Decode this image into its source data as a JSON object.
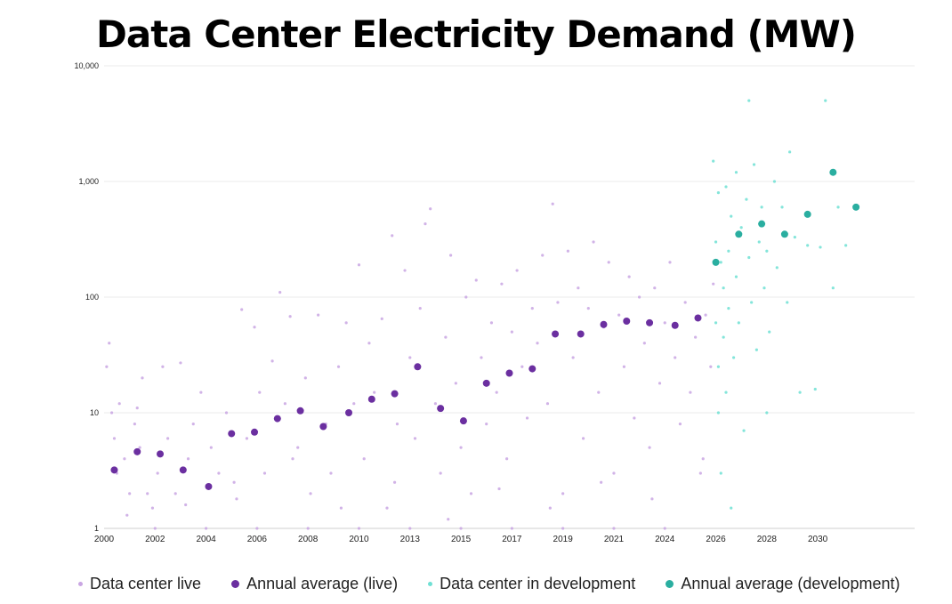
{
  "chart_data": {
    "type": "scatter",
    "title": "Data Center Electricity Demand (MW)",
    "y_scale": "log",
    "ylim": [
      1,
      10000
    ],
    "y_ticks": [
      {
        "value": 1,
        "label": "1"
      },
      {
        "value": 10,
        "label": "10"
      },
      {
        "value": 100,
        "label": "100"
      },
      {
        "value": 1000,
        "label": "1,000"
      },
      {
        "value": 10000,
        "label": "10,000"
      }
    ],
    "xlim": [
      2000,
      2031.8
    ],
    "x_ticks": [
      {
        "value": 2000,
        "label": "2000"
      },
      {
        "value": 2002,
        "label": "2002"
      },
      {
        "value": 2004,
        "label": "2004"
      },
      {
        "value": 2006,
        "label": "2006"
      },
      {
        "value": 2008,
        "label": "2008"
      },
      {
        "value": 2010,
        "label": "2010"
      },
      {
        "value": 2012,
        "label": "2013"
      },
      {
        "value": 2014,
        "label": "2015"
      },
      {
        "value": 2016,
        "label": "2017"
      },
      {
        "value": 2018,
        "label": "2019"
      },
      {
        "value": 2020,
        "label": "2021"
      },
      {
        "value": 2022,
        "label": "2024"
      },
      {
        "value": 2024,
        "label": "2026"
      },
      {
        "value": 2026,
        "label": "2028"
      },
      {
        "value": 2028,
        "label": "2030"
      }
    ],
    "grid": true,
    "legend_position": "bottom",
    "series": [
      {
        "name": "Data center live",
        "color": "#c9a6e3",
        "points": [
          [
            2000.1,
            25
          ],
          [
            2000.2,
            40
          ],
          [
            2000.3,
            10
          ],
          [
            2000.4,
            6
          ],
          [
            2000.5,
            3
          ],
          [
            2000.6,
            12
          ],
          [
            2000.8,
            4
          ],
          [
            2000.9,
            1.3
          ],
          [
            2001.0,
            2
          ],
          [
            2001.2,
            8
          ],
          [
            2001.4,
            5
          ],
          [
            2001.5,
            20
          ],
          [
            2001.7,
            2
          ],
          [
            2001.9,
            1.5
          ],
          [
            2002.1,
            3
          ],
          [
            2002.3,
            25
          ],
          [
            2002.5,
            6
          ],
          [
            2002.8,
            2
          ],
          [
            2003.0,
            27
          ],
          [
            2003.2,
            1.6
          ],
          [
            2003.5,
            8
          ],
          [
            2003.8,
            15
          ],
          [
            2004.2,
            5
          ],
          [
            2004.5,
            3
          ],
          [
            2004.8,
            10
          ],
          [
            2005.1,
            2.5
          ],
          [
            2005.4,
            78
          ],
          [
            2005.6,
            6
          ],
          [
            2005.9,
            55
          ],
          [
            2006.1,
            15
          ],
          [
            2006.3,
            3
          ],
          [
            2006.6,
            28
          ],
          [
            2006.9,
            110
          ],
          [
            2007.1,
            12
          ],
          [
            2007.3,
            68
          ],
          [
            2007.6,
            5
          ],
          [
            2007.9,
            20
          ],
          [
            2008.1,
            2
          ],
          [
            2008.4,
            70
          ],
          [
            2008.7,
            8
          ],
          [
            2008.9,
            3
          ],
          [
            2009.2,
            25
          ],
          [
            2009.5,
            60
          ],
          [
            2009.8,
            12
          ],
          [
            2010.0,
            190
          ],
          [
            2010.2,
            4
          ],
          [
            2010.4,
            40
          ],
          [
            2010.6,
            15
          ],
          [
            2010.9,
            65
          ],
          [
            2011.1,
            1.5
          ],
          [
            2011.3,
            340
          ],
          [
            2011.5,
            8
          ],
          [
            2011.8,
            170
          ],
          [
            2012.0,
            30
          ],
          [
            2012.2,
            6
          ],
          [
            2012.4,
            80
          ],
          [
            2012.6,
            430
          ],
          [
            2012.8,
            580
          ],
          [
            2013.0,
            12
          ],
          [
            2013.2,
            3
          ],
          [
            2013.4,
            45
          ],
          [
            2013.6,
            230
          ],
          [
            2013.8,
            18
          ],
          [
            2014.0,
            5
          ],
          [
            2014.2,
            100
          ],
          [
            2014.4,
            2
          ],
          [
            2014.6,
            140
          ],
          [
            2014.8,
            30
          ],
          [
            2015.0,
            8
          ],
          [
            2015.2,
            60
          ],
          [
            2015.4,
            15
          ],
          [
            2015.6,
            130
          ],
          [
            2015.8,
            4
          ],
          [
            2016.0,
            50
          ],
          [
            2016.2,
            170
          ],
          [
            2016.4,
            25
          ],
          [
            2016.6,
            9
          ],
          [
            2016.8,
            80
          ],
          [
            2017.0,
            40
          ],
          [
            2017.2,
            230
          ],
          [
            2017.4,
            12
          ],
          [
            2017.6,
            640
          ],
          [
            2017.8,
            90
          ],
          [
            2018.0,
            2
          ],
          [
            2018.2,
            250
          ],
          [
            2018.4,
            30
          ],
          [
            2018.6,
            120
          ],
          [
            2018.8,
            6
          ],
          [
            2019.0,
            80
          ],
          [
            2019.2,
            300
          ],
          [
            2019.4,
            15
          ],
          [
            2019.6,
            55
          ],
          [
            2019.8,
            200
          ],
          [
            2020.0,
            3
          ],
          [
            2020.2,
            70
          ],
          [
            2020.4,
            25
          ],
          [
            2020.6,
            150
          ],
          [
            2020.8,
            9
          ],
          [
            2021.0,
            100
          ],
          [
            2021.2,
            40
          ],
          [
            2021.4,
            5
          ],
          [
            2021.6,
            120
          ],
          [
            2021.8,
            18
          ],
          [
            2022.0,
            60
          ],
          [
            2022.2,
            200
          ],
          [
            2022.4,
            30
          ],
          [
            2022.6,
            8
          ],
          [
            2022.8,
            90
          ],
          [
            2023.0,
            15
          ],
          [
            2023.2,
            45
          ],
          [
            2023.4,
            3
          ],
          [
            2023.6,
            70
          ],
          [
            2023.8,
            25
          ],
          [
            2023.9,
            130
          ],
          [
            2002.0,
            1
          ],
          [
            2004.0,
            1
          ],
          [
            2006.0,
            1
          ],
          [
            2008.0,
            1
          ],
          [
            2010.0,
            1
          ],
          [
            2012.0,
            1
          ],
          [
            2014.0,
            1
          ],
          [
            2016.0,
            1
          ],
          [
            2018.0,
            1
          ],
          [
            2020.0,
            1
          ],
          [
            2022.0,
            1
          ],
          [
            2001.3,
            11
          ],
          [
            2003.3,
            4
          ],
          [
            2005.2,
            1.8
          ],
          [
            2007.4,
            4
          ],
          [
            2009.3,
            1.5
          ],
          [
            2011.4,
            2.5
          ],
          [
            2013.5,
            1.2
          ],
          [
            2015.5,
            2.2
          ],
          [
            2017.5,
            1.5
          ],
          [
            2019.5,
            2.5
          ],
          [
            2021.5,
            1.8
          ],
          [
            2023.5,
            4
          ]
        ]
      },
      {
        "name": "Annual average (live)",
        "color": "#6b2fa0",
        "points": [
          [
            2000.4,
            3.2
          ],
          [
            2001.3,
            4.6
          ],
          [
            2002.2,
            4.4
          ],
          [
            2003.1,
            3.2
          ],
          [
            2004.1,
            2.3
          ],
          [
            2005.0,
            6.6
          ],
          [
            2005.9,
            6.8
          ],
          [
            2006.8,
            8.9
          ],
          [
            2007.7,
            10.4
          ],
          [
            2008.6,
            7.6
          ],
          [
            2009.6,
            10.0
          ],
          [
            2010.5,
            13.1
          ],
          [
            2011.4,
            14.6
          ],
          [
            2012.3,
            25.0
          ],
          [
            2013.2,
            10.9
          ],
          [
            2014.1,
            8.5
          ],
          [
            2015.0,
            18.0
          ],
          [
            2015.9,
            22.0
          ],
          [
            2016.8,
            24.0
          ],
          [
            2017.7,
            48.0
          ],
          [
            2018.7,
            48.0
          ],
          [
            2019.6,
            58.0
          ],
          [
            2020.5,
            62.0
          ],
          [
            2021.4,
            60.0
          ],
          [
            2022.4,
            57.0
          ],
          [
            2023.3,
            66.0
          ]
        ]
      },
      {
        "name": "Data center in development",
        "color": "#6fe0d4",
        "points": [
          [
            2023.9,
            1500
          ],
          [
            2024.0,
            300
          ],
          [
            2024.0,
            60
          ],
          [
            2024.1,
            800
          ],
          [
            2024.1,
            25
          ],
          [
            2024.1,
            10
          ],
          [
            2024.2,
            200
          ],
          [
            2024.2,
            3
          ],
          [
            2024.3,
            120
          ],
          [
            2024.3,
            45
          ],
          [
            2024.4,
            900
          ],
          [
            2024.4,
            15
          ],
          [
            2024.5,
            250
          ],
          [
            2024.5,
            80
          ],
          [
            2024.6,
            500
          ],
          [
            2024.7,
            30
          ],
          [
            2024.8,
            1200
          ],
          [
            2024.8,
            150
          ],
          [
            2024.9,
            60
          ],
          [
            2025.0,
            400
          ],
          [
            2025.1,
            7
          ],
          [
            2025.2,
            700
          ],
          [
            2025.3,
            220
          ],
          [
            2025.4,
            90
          ],
          [
            2025.5,
            1400
          ],
          [
            2025.6,
            35
          ],
          [
            2025.7,
            300
          ],
          [
            2025.8,
            600
          ],
          [
            2025.9,
            120
          ],
          [
            2026.0,
            250
          ],
          [
            2026.1,
            50
          ],
          [
            2026.3,
            1000
          ],
          [
            2026.4,
            180
          ],
          [
            2026.6,
            600
          ],
          [
            2026.8,
            90
          ],
          [
            2026.9,
            1800
          ],
          [
            2027.1,
            330
          ],
          [
            2027.3,
            15
          ],
          [
            2027.6,
            280
          ],
          [
            2027.9,
            16
          ],
          [
            2028.1,
            270
          ],
          [
            2028.3,
            5000
          ],
          [
            2028.6,
            120
          ],
          [
            2028.8,
            600
          ],
          [
            2029.1,
            280
          ],
          [
            2025.3,
            5000
          ],
          [
            2024.6,
            1.5
          ],
          [
            2026.0,
            10
          ]
        ]
      },
      {
        "name": "Annual average (development)",
        "color": "#2aaea0",
        "points": [
          [
            2024.0,
            200
          ],
          [
            2024.9,
            350
          ],
          [
            2025.8,
            430
          ],
          [
            2026.7,
            350
          ],
          [
            2027.6,
            520
          ],
          [
            2028.6,
            1200
          ],
          [
            2029.5,
            600
          ]
        ]
      }
    ]
  },
  "legend": {
    "items": [
      {
        "label": "Data center live",
        "color": "#c9a6e3",
        "size": "small"
      },
      {
        "label": "Annual average (live)",
        "color": "#6b2fa0",
        "size": "large"
      },
      {
        "label": "Data center in development",
        "color": "#6fe0d4",
        "size": "small"
      },
      {
        "label": "Annual average (development)",
        "color": "#2aaea0",
        "size": "large"
      }
    ]
  }
}
